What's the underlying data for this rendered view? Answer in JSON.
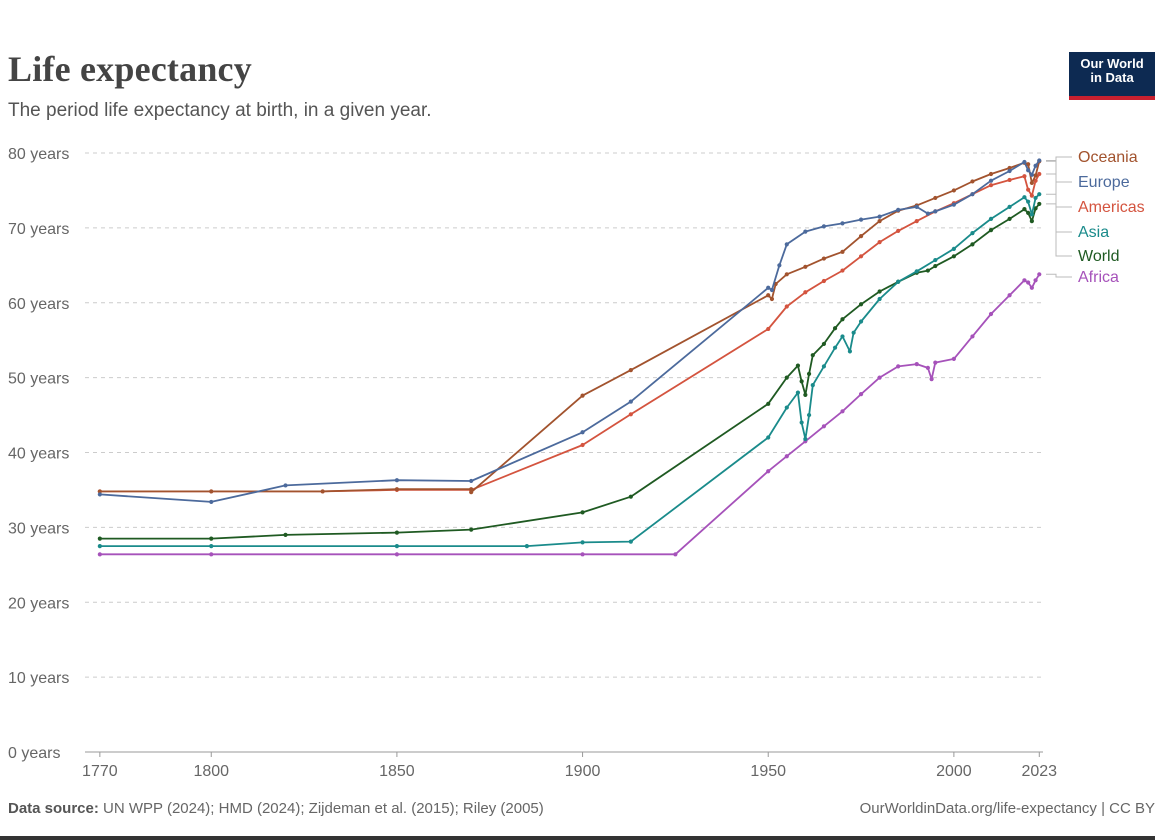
{
  "header": {
    "title": "Life expectancy",
    "subtitle": "The period life expectancy at birth, in a given year.",
    "logo_line1": "Our World",
    "logo_line2": "in Data"
  },
  "footer": {
    "source_label": "Data source:",
    "source_text": "UN WPP (2024); HMD (2024); Zijdeman et al. (2015); Riley (2005)",
    "attribution": "OurWorldinData.org/life-expectancy | CC BY"
  },
  "colors": {
    "Oceania": "#a2532e",
    "Europe": "#4c6a9c",
    "Americas": "#d4543f",
    "Asia": "#1a8b8b",
    "World": "#1f5a22",
    "Africa": "#a652ba",
    "grid": "#cccccc",
    "axis_text": "#666666"
  },
  "chart_data": {
    "type": "line",
    "xlim": [
      1766,
      2024
    ],
    "ylim": [
      0,
      80
    ],
    "x_ticks": [
      {
        "value": 1770,
        "label": "1770"
      },
      {
        "value": 1800,
        "label": "1800"
      },
      {
        "value": 1850,
        "label": "1850"
      },
      {
        "value": 1900,
        "label": "1900"
      },
      {
        "value": 1950,
        "label": "1950"
      },
      {
        "value": 2000,
        "label": "2000"
      },
      {
        "value": 2023,
        "label": "2023"
      }
    ],
    "y_ticks": [
      {
        "value": 0,
        "label": "0 years"
      },
      {
        "value": 10,
        "label": "10 years"
      },
      {
        "value": 20,
        "label": "20 years"
      },
      {
        "value": 30,
        "label": "30 years"
      },
      {
        "value": 40,
        "label": "40 years"
      },
      {
        "value": 50,
        "label": "50 years"
      },
      {
        "value": 60,
        "label": "60 years"
      },
      {
        "value": 70,
        "label": "70 years"
      },
      {
        "value": 80,
        "label": "80 years"
      }
    ],
    "grid": "horizontal dashed",
    "legend": "right, labels at line ends",
    "series": [
      {
        "name": "Oceania",
        "points": [
          [
            1770,
            34.8
          ],
          [
            1800,
            34.8
          ],
          [
            1830,
            34.8
          ],
          [
            1850,
            35.1
          ],
          [
            1870,
            35.1
          ],
          [
            1870,
            34.7
          ],
          [
            1900,
            47.6
          ],
          [
            1913,
            51
          ],
          [
            1950,
            61
          ],
          [
            1951,
            60.5
          ],
          [
            1952,
            62.5
          ],
          [
            1955,
            63.8
          ],
          [
            1960,
            64.8
          ],
          [
            1965,
            65.9
          ],
          [
            1970,
            66.8
          ],
          [
            1975,
            68.9
          ],
          [
            1980,
            70.9
          ],
          [
            1985,
            72.3
          ],
          [
            1990,
            73
          ],
          [
            1995,
            74
          ],
          [
            2000,
            75
          ],
          [
            2005,
            76.2
          ],
          [
            2010,
            77.2
          ],
          [
            2015,
            78
          ],
          [
            2019,
            78.7
          ],
          [
            2020,
            78.5
          ],
          [
            2021,
            76
          ],
          [
            2022,
            77
          ],
          [
            2023,
            78.9
          ]
        ]
      },
      {
        "name": "Europe",
        "points": [
          [
            1770,
            34.4
          ],
          [
            1800,
            33.4
          ],
          [
            1820,
            35.6
          ],
          [
            1850,
            36.3
          ],
          [
            1870,
            36.2
          ],
          [
            1900,
            42.7
          ],
          [
            1913,
            46.8
          ],
          [
            1950,
            62
          ],
          [
            1951,
            61.7
          ],
          [
            1953,
            65
          ],
          [
            1955,
            67.8
          ],
          [
            1960,
            69.5
          ],
          [
            1965,
            70.2
          ],
          [
            1970,
            70.6
          ],
          [
            1975,
            71.1
          ],
          [
            1980,
            71.5
          ],
          [
            1985,
            72.4
          ],
          [
            1990,
            72.8
          ],
          [
            1993,
            71.9
          ],
          [
            1995,
            72.2
          ],
          [
            2000,
            73.1
          ],
          [
            2005,
            74.5
          ],
          [
            2010,
            76.3
          ],
          [
            2015,
            77.6
          ],
          [
            2019,
            78.8
          ],
          [
            2020,
            77.7
          ],
          [
            2021,
            77.1
          ],
          [
            2022,
            78.3
          ],
          [
            2023,
            79
          ]
        ]
      },
      {
        "name": "Americas",
        "points": [
          [
            1770,
            34.8
          ],
          [
            1800,
            34.8
          ],
          [
            1830,
            34.8
          ],
          [
            1850,
            35
          ],
          [
            1870,
            35
          ],
          [
            1900,
            41
          ],
          [
            1913,
            45.1
          ],
          [
            1950,
            56.5
          ],
          [
            1955,
            59.5
          ],
          [
            1960,
            61.4
          ],
          [
            1965,
            62.9
          ],
          [
            1970,
            64.3
          ],
          [
            1975,
            66.2
          ],
          [
            1980,
            68.1
          ],
          [
            1985,
            69.6
          ],
          [
            1990,
            70.9
          ],
          [
            1995,
            72.2
          ],
          [
            2000,
            73.3
          ],
          [
            2005,
            74.5
          ],
          [
            2010,
            75.7
          ],
          [
            2015,
            76.4
          ],
          [
            2019,
            76.9
          ],
          [
            2020,
            75.1
          ],
          [
            2021,
            74.3
          ],
          [
            2022,
            76.3
          ],
          [
            2023,
            77.2
          ]
        ]
      },
      {
        "name": "Asia",
        "points": [
          [
            1770,
            27.5
          ],
          [
            1800,
            27.5
          ],
          [
            1850,
            27.5
          ],
          [
            1885,
            27.5
          ],
          [
            1900,
            28
          ],
          [
            1913,
            28.1
          ],
          [
            1950,
            42
          ],
          [
            1955,
            46
          ],
          [
            1958,
            48
          ],
          [
            1959,
            44
          ],
          [
            1960,
            41.8
          ],
          [
            1961,
            45
          ],
          [
            1962,
            49
          ],
          [
            1965,
            51.5
          ],
          [
            1968,
            54
          ],
          [
            1970,
            55.5
          ],
          [
            1972,
            53.5
          ],
          [
            1973,
            56
          ],
          [
            1975,
            57.5
          ],
          [
            1980,
            60.5
          ],
          [
            1985,
            62.8
          ],
          [
            1990,
            64.2
          ],
          [
            1995,
            65.7
          ],
          [
            2000,
            67.2
          ],
          [
            2005,
            69.3
          ],
          [
            2010,
            71.2
          ],
          [
            2015,
            72.8
          ],
          [
            2019,
            74.1
          ],
          [
            2020,
            73.5
          ],
          [
            2021,
            71.8
          ],
          [
            2022,
            74
          ],
          [
            2023,
            74.5
          ]
        ]
      },
      {
        "name": "World",
        "points": [
          [
            1770,
            28.5
          ],
          [
            1800,
            28.5
          ],
          [
            1820,
            29
          ],
          [
            1850,
            29.3
          ],
          [
            1870,
            29.7
          ],
          [
            1900,
            32
          ],
          [
            1913,
            34.1
          ],
          [
            1950,
            46.5
          ],
          [
            1955,
            50
          ],
          [
            1958,
            51.6
          ],
          [
            1959,
            49.5
          ],
          [
            1960,
            47.7
          ],
          [
            1961,
            50.5
          ],
          [
            1962,
            53
          ],
          [
            1965,
            54.5
          ],
          [
            1968,
            56.6
          ],
          [
            1970,
            57.8
          ],
          [
            1975,
            59.8
          ],
          [
            1980,
            61.5
          ],
          [
            1985,
            62.8
          ],
          [
            1990,
            64
          ],
          [
            1993,
            64.3
          ],
          [
            1995,
            64.9
          ],
          [
            2000,
            66.2
          ],
          [
            2005,
            67.8
          ],
          [
            2010,
            69.7
          ],
          [
            2015,
            71.2
          ],
          [
            2019,
            72.5
          ],
          [
            2020,
            72
          ],
          [
            2021,
            70.9
          ],
          [
            2022,
            72.6
          ],
          [
            2023,
            73.2
          ]
        ]
      },
      {
        "name": "Africa",
        "points": [
          [
            1770,
            26.4
          ],
          [
            1800,
            26.4
          ],
          [
            1850,
            26.4
          ],
          [
            1900,
            26.4
          ],
          [
            1925,
            26.4
          ],
          [
            1950,
            37.5
          ],
          [
            1955,
            39.5
          ],
          [
            1960,
            41.5
          ],
          [
            1965,
            43.5
          ],
          [
            1970,
            45.5
          ],
          [
            1975,
            47.8
          ],
          [
            1980,
            50
          ],
          [
            1985,
            51.5
          ],
          [
            1990,
            51.8
          ],
          [
            1993,
            51.3
          ],
          [
            1994,
            49.8
          ],
          [
            1995,
            52
          ],
          [
            2000,
            52.5
          ],
          [
            2005,
            55.5
          ],
          [
            2010,
            58.5
          ],
          [
            2015,
            61
          ],
          [
            2019,
            63
          ],
          [
            2020,
            62.7
          ],
          [
            2021,
            62
          ],
          [
            2022,
            63
          ],
          [
            2023,
            63.8
          ]
        ]
      }
    ]
  }
}
